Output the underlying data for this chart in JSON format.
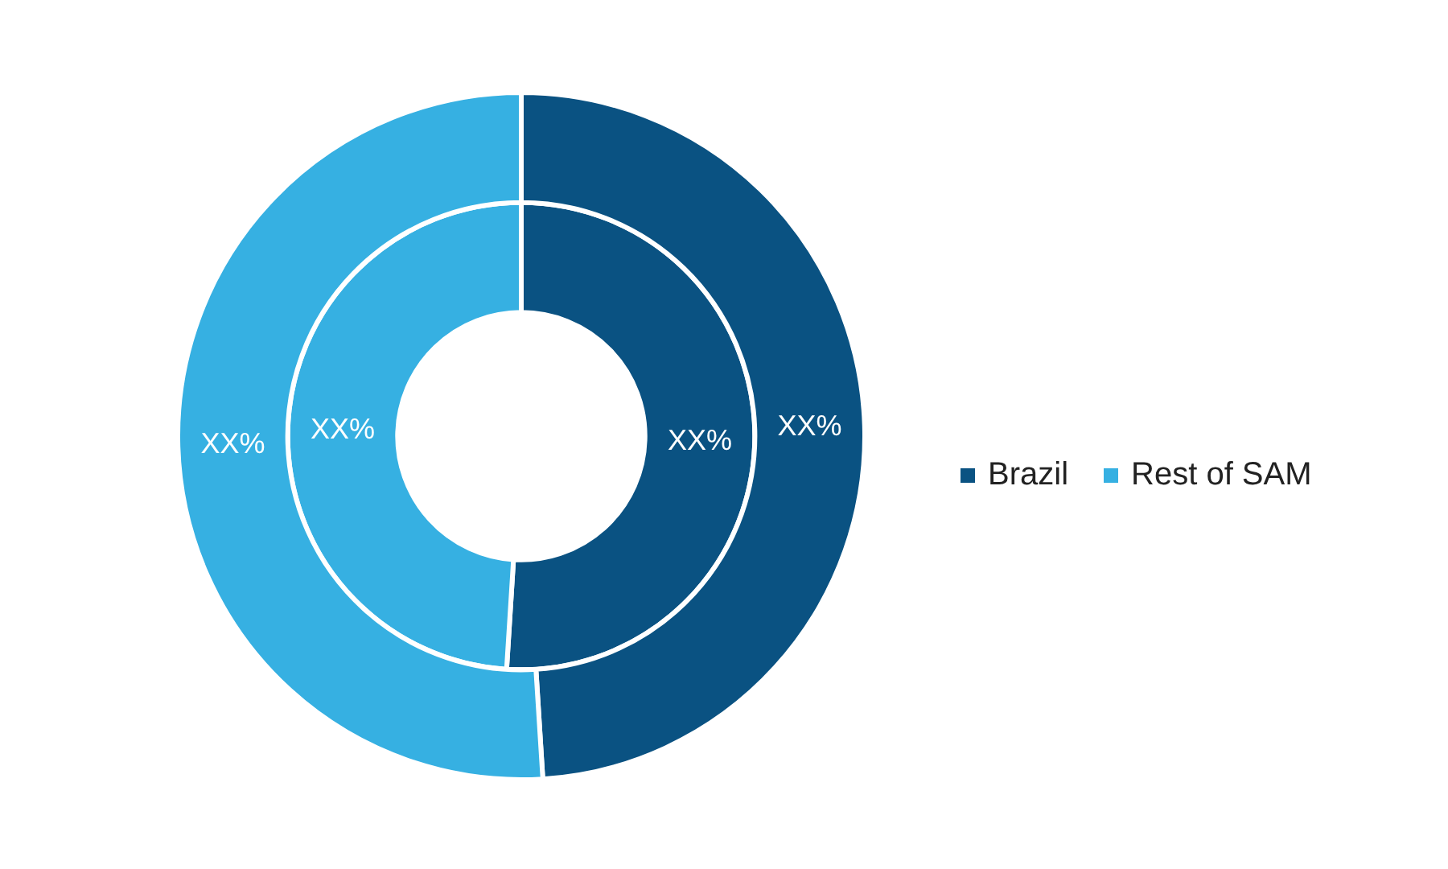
{
  "chart_data": {
    "type": "donut",
    "categories": [
      "Brazil",
      "Rest of SAM"
    ],
    "series": [
      {
        "values": [
          49,
          51
        ],
        "colors": [
          "#0a5282",
          "#36b0e2"
        ],
        "value_labels": [
          "XX%",
          "XX%"
        ]
      },
      {
        "values": [
          51,
          49
        ],
        "colors": [
          "#0a5282",
          "#36b0e2"
        ],
        "value_labels": [
          "XX%",
          "XX%"
        ]
      }
    ],
    "legend": "right"
  }
}
